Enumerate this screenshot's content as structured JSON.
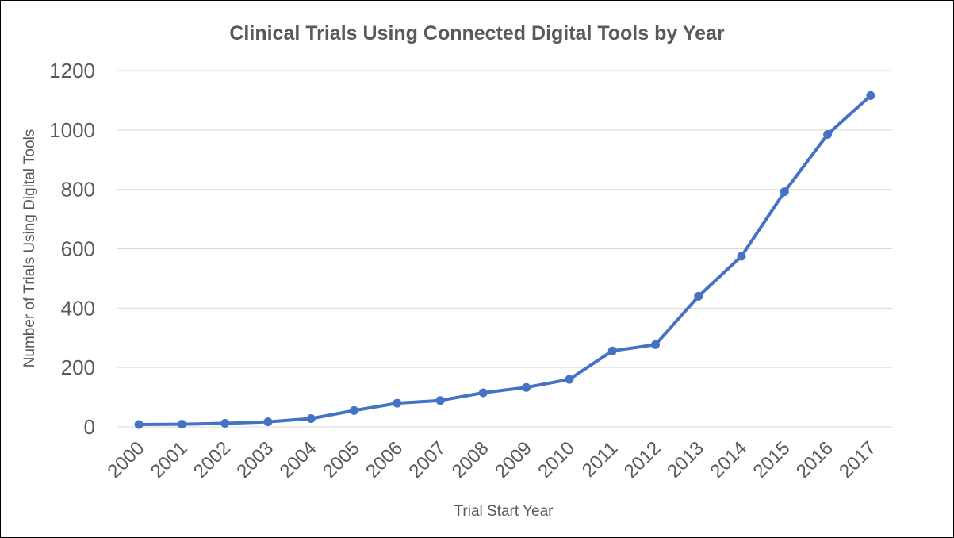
{
  "chart_data": {
    "type": "line",
    "title": "Clinical Trials Using Connected Digital Tools by Year",
    "xlabel": "Trial Start Year",
    "ylabel": "Number of Trials Using Digital Tools",
    "categories": [
      "2000",
      "2001",
      "2002",
      "2003",
      "2004",
      "2005",
      "2006",
      "2007",
      "2008",
      "2009",
      "2010",
      "2011",
      "2012",
      "2013",
      "2014",
      "2015",
      "2016",
      "2017"
    ],
    "series": [
      {
        "values": [
          8,
          9,
          12,
          17,
          28,
          55,
          80,
          89,
          115,
          133,
          160,
          256,
          277,
          440,
          575,
          792,
          985,
          1116
        ]
      }
    ],
    "ylim": [
      0,
      1200
    ],
    "yticks": [
      "0",
      "200",
      "400",
      "600",
      "800",
      "1000",
      "1200"
    ],
    "grid": "horizontal",
    "legend": "none",
    "line_color": "#4472C4",
    "grid_color": "#D9D9D9"
  }
}
